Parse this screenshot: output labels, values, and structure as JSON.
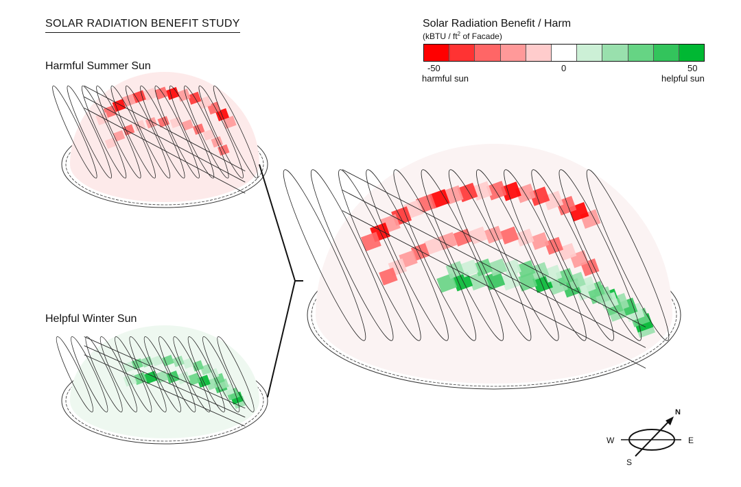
{
  "title": "SOLAR RADIATION BENEFIT STUDY",
  "panels": {
    "summer": "Harmful Summer Sun",
    "winter": "Helpful Winter Sun"
  },
  "legend": {
    "title": "Solar Radiation Benefit / Harm",
    "unit_prefix": "(kBTU / ft",
    "unit_sup": "2",
    "unit_suffix": " of Facade)",
    "min_label": "-50",
    "mid_label": "0",
    "max_label": "50",
    "left_caption": "harmful sun",
    "right_caption": "helpful sun",
    "range": [
      -50,
      50
    ],
    "colors": [
      "#ff0000",
      "#ff3333",
      "#ff6666",
      "#ff9999",
      "#ffcccc",
      "#ffffff",
      "#ccf0d6",
      "#99e0ad",
      "#66d484",
      "#33c45c",
      "#00b833"
    ]
  },
  "compass": {
    "n": "N",
    "s": "S",
    "e": "E",
    "w": "W"
  }
}
